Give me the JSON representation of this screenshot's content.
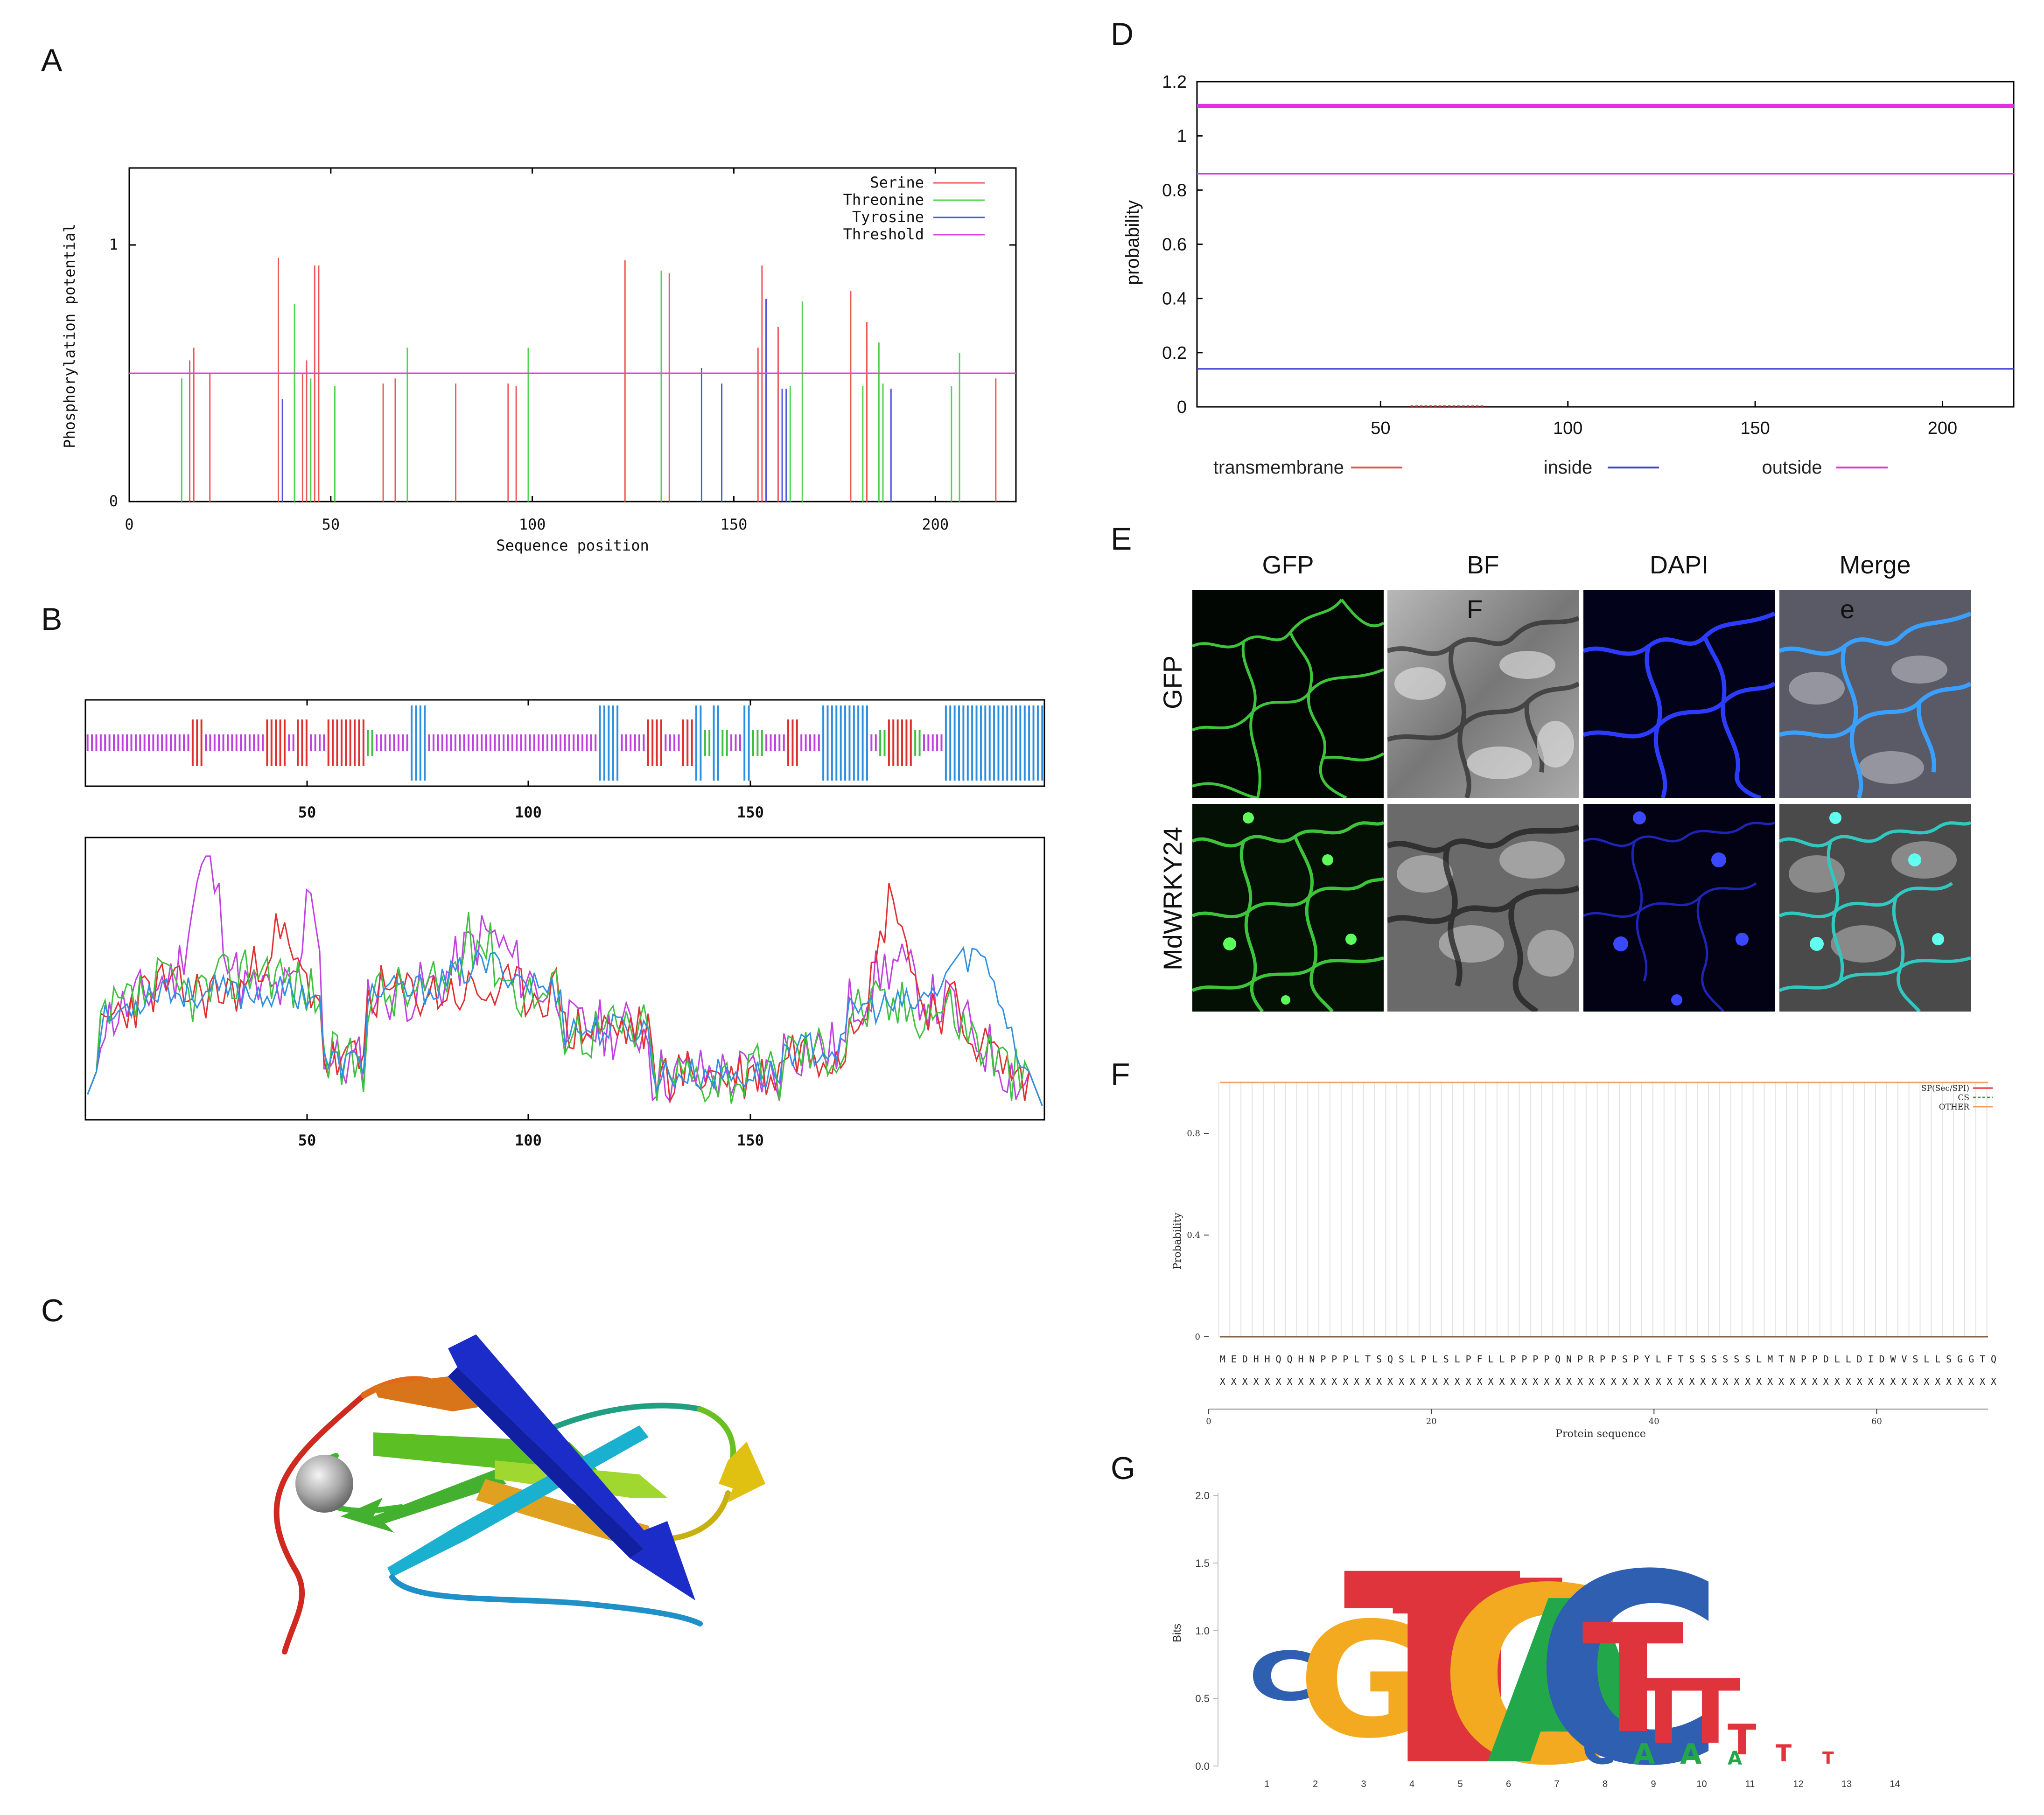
{
  "panels": {
    "A": "A",
    "B": "B",
    "C": "C",
    "D": "D",
    "E": "E",
    "F": "F",
    "G": "G"
  },
  "panelA": {
    "ylabel": "Phosphorylation potential",
    "xlabel": "Sequence position",
    "xticks": [
      "0",
      "50",
      "100",
      "150",
      "200"
    ],
    "yticks": [
      "0",
      "1"
    ],
    "legend": [
      {
        "label": "Serine",
        "color": "#f0595a"
      },
      {
        "label": "Threonine",
        "color": "#52d452"
      },
      {
        "label": "Tyrosine",
        "color": "#5055e0"
      },
      {
        "label": "Threshold",
        "color": "#e040e0"
      }
    ]
  },
  "panelB": {
    "xticks_top": [
      "50",
      "100",
      "150"
    ],
    "xticks_bottom": [
      "50",
      "100",
      "150"
    ]
  },
  "panelD": {
    "ylabel": "probability",
    "xticks": [
      "50",
      "100",
      "150",
      "200"
    ],
    "yticks": [
      "0",
      "0.2",
      "0.4",
      "0.6",
      "0.8",
      "1",
      "1.2"
    ],
    "legend": [
      {
        "label": "transmembrane",
        "color": "#e55050"
      },
      {
        "label": "inside",
        "color": "#4040d0"
      },
      {
        "label": "outside",
        "color": "#e030e0"
      }
    ]
  },
  "panelE": {
    "columns": [
      "GFP",
      "BF",
      "DAPI",
      "Merge"
    ],
    "rows": [
      "GFP",
      "MdWRKY24"
    ],
    "overlay_F": "F",
    "overlay_e": "e"
  },
  "panelF": {
    "ylabel": "Probability",
    "xlabel": "Protein sequence",
    "yticks": [
      "0",
      "0.4",
      "0.8"
    ],
    "xticks": [
      "0",
      "20",
      "40",
      "60"
    ],
    "legend": [
      {
        "label": "SP(Sec/SPI)",
        "color": "#e03030"
      },
      {
        "label": "CS",
        "color": "#30a030"
      },
      {
        "label": "OTHER",
        "color": "#f0a060"
      }
    ],
    "sequence": "MEDHHQQHNPPPLTSQSLPLSLPFLLPPPPQNPRPPSPYLFTSSSSSSLMTNPPDLLDIDWVSLLSGGTQ",
    "xrow": "XXXXXXXXXXXXXXXXXXXXXXXXXXXXXXXXXXXXXXXXXXXXXXXXXXXXXXXXXXXXXXXXXXXXXX"
  },
  "panelG": {
    "ylabel": "Bits",
    "yticks": [
      "0.0",
      "0.5",
      "1.0",
      "1.5",
      "2.0"
    ],
    "xticks": [
      "1",
      "2",
      "3",
      "4",
      "5",
      "6",
      "7",
      "8",
      "9",
      "10",
      "11",
      "12",
      "13",
      "14"
    ]
  },
  "chart_data": [
    {
      "type": "bar",
      "panel": "A",
      "ylim": [
        0,
        1.3
      ],
      "xlim": [
        0,
        220
      ],
      "series": [
        {
          "name": "Serine",
          "values": [
            [
              15,
              0.55
            ],
            [
              16,
              0.6
            ],
            [
              20,
              0.5
            ],
            [
              37,
              0.95
            ],
            [
              41,
              0.48
            ],
            [
              43,
              0.5
            ],
            [
              44,
              0.55
            ],
            [
              45,
              0.48
            ],
            [
              46,
              0.92
            ],
            [
              47,
              0.92
            ],
            [
              63,
              0.46
            ],
            [
              66,
              0.48
            ],
            [
              81,
              0.46
            ],
            [
              94,
              0.46
            ],
            [
              96,
              0.45
            ],
            [
              123,
              0.94
            ],
            [
              134,
              0.89
            ],
            [
              156,
              0.6
            ],
            [
              157,
              0.92
            ],
            [
              161,
              0.68
            ],
            [
              179,
              0.82
            ],
            [
              183,
              0.7
            ],
            [
              215,
              0.48
            ]
          ]
        },
        {
          "name": "Threonine",
          "values": [
            [
              13,
              0.48
            ],
            [
              41,
              0.77
            ],
            [
              45,
              0.48
            ],
            [
              51,
              0.45
            ],
            [
              69,
              0.6
            ],
            [
              99,
              0.6
            ],
            [
              132,
              0.9
            ],
            [
              164,
              0.45
            ],
            [
              167,
              0.78
            ],
            [
              182,
              0.45
            ],
            [
              186,
              0.62
            ],
            [
              187,
              0.46
            ],
            [
              204,
              0.45
            ],
            [
              206,
              0.58
            ]
          ]
        },
        {
          "name": "Tyrosine",
          "values": [
            [
              38,
              0.4
            ],
            [
              142,
              0.52
            ],
            [
              147,
              0.46
            ],
            [
              158,
              0.79
            ],
            [
              162,
              0.44
            ],
            [
              163,
              0.44
            ],
            [
              189,
              0.44
            ]
          ]
        },
        {
          "name": "Threshold",
          "values": [
            [
              0,
              0.5
            ],
            [
              220,
              0.5
            ]
          ]
        }
      ]
    },
    {
      "type": "line",
      "panel": "D",
      "ylim": [
        0,
        1.2
      ],
      "xlim": [
        1,
        219
      ],
      "series": [
        {
          "name": "transmembrane",
          "values": [
            [
              58,
              0.0
            ],
            [
              78,
              0.0
            ]
          ]
        },
        {
          "name": "inside",
          "values": [
            [
              1,
              0.14
            ],
            [
              219,
              0.14
            ]
          ]
        },
        {
          "name": "outside",
          "values": [
            [
              1,
              0.86
            ],
            [
              219,
              0.86
            ]
          ]
        },
        {
          "name": "outside",
          "values": [
            [
              1,
              1.11
            ],
            [
              219,
              1.11
            ]
          ]
        }
      ]
    },
    {
      "type": "line",
      "panel": "F",
      "ylim": [
        -0.1,
        1.0
      ],
      "xlim": [
        0,
        70
      ],
      "series": [
        {
          "name": "OTHER",
          "values": [
            [
              1,
              1.0
            ],
            [
              70,
              1.0
            ]
          ]
        },
        {
          "name": "SP(Sec/SPI)",
          "values": [
            [
              1,
              0.0
            ],
            [
              70,
              0.0
            ]
          ]
        }
      ]
    }
  ]
}
